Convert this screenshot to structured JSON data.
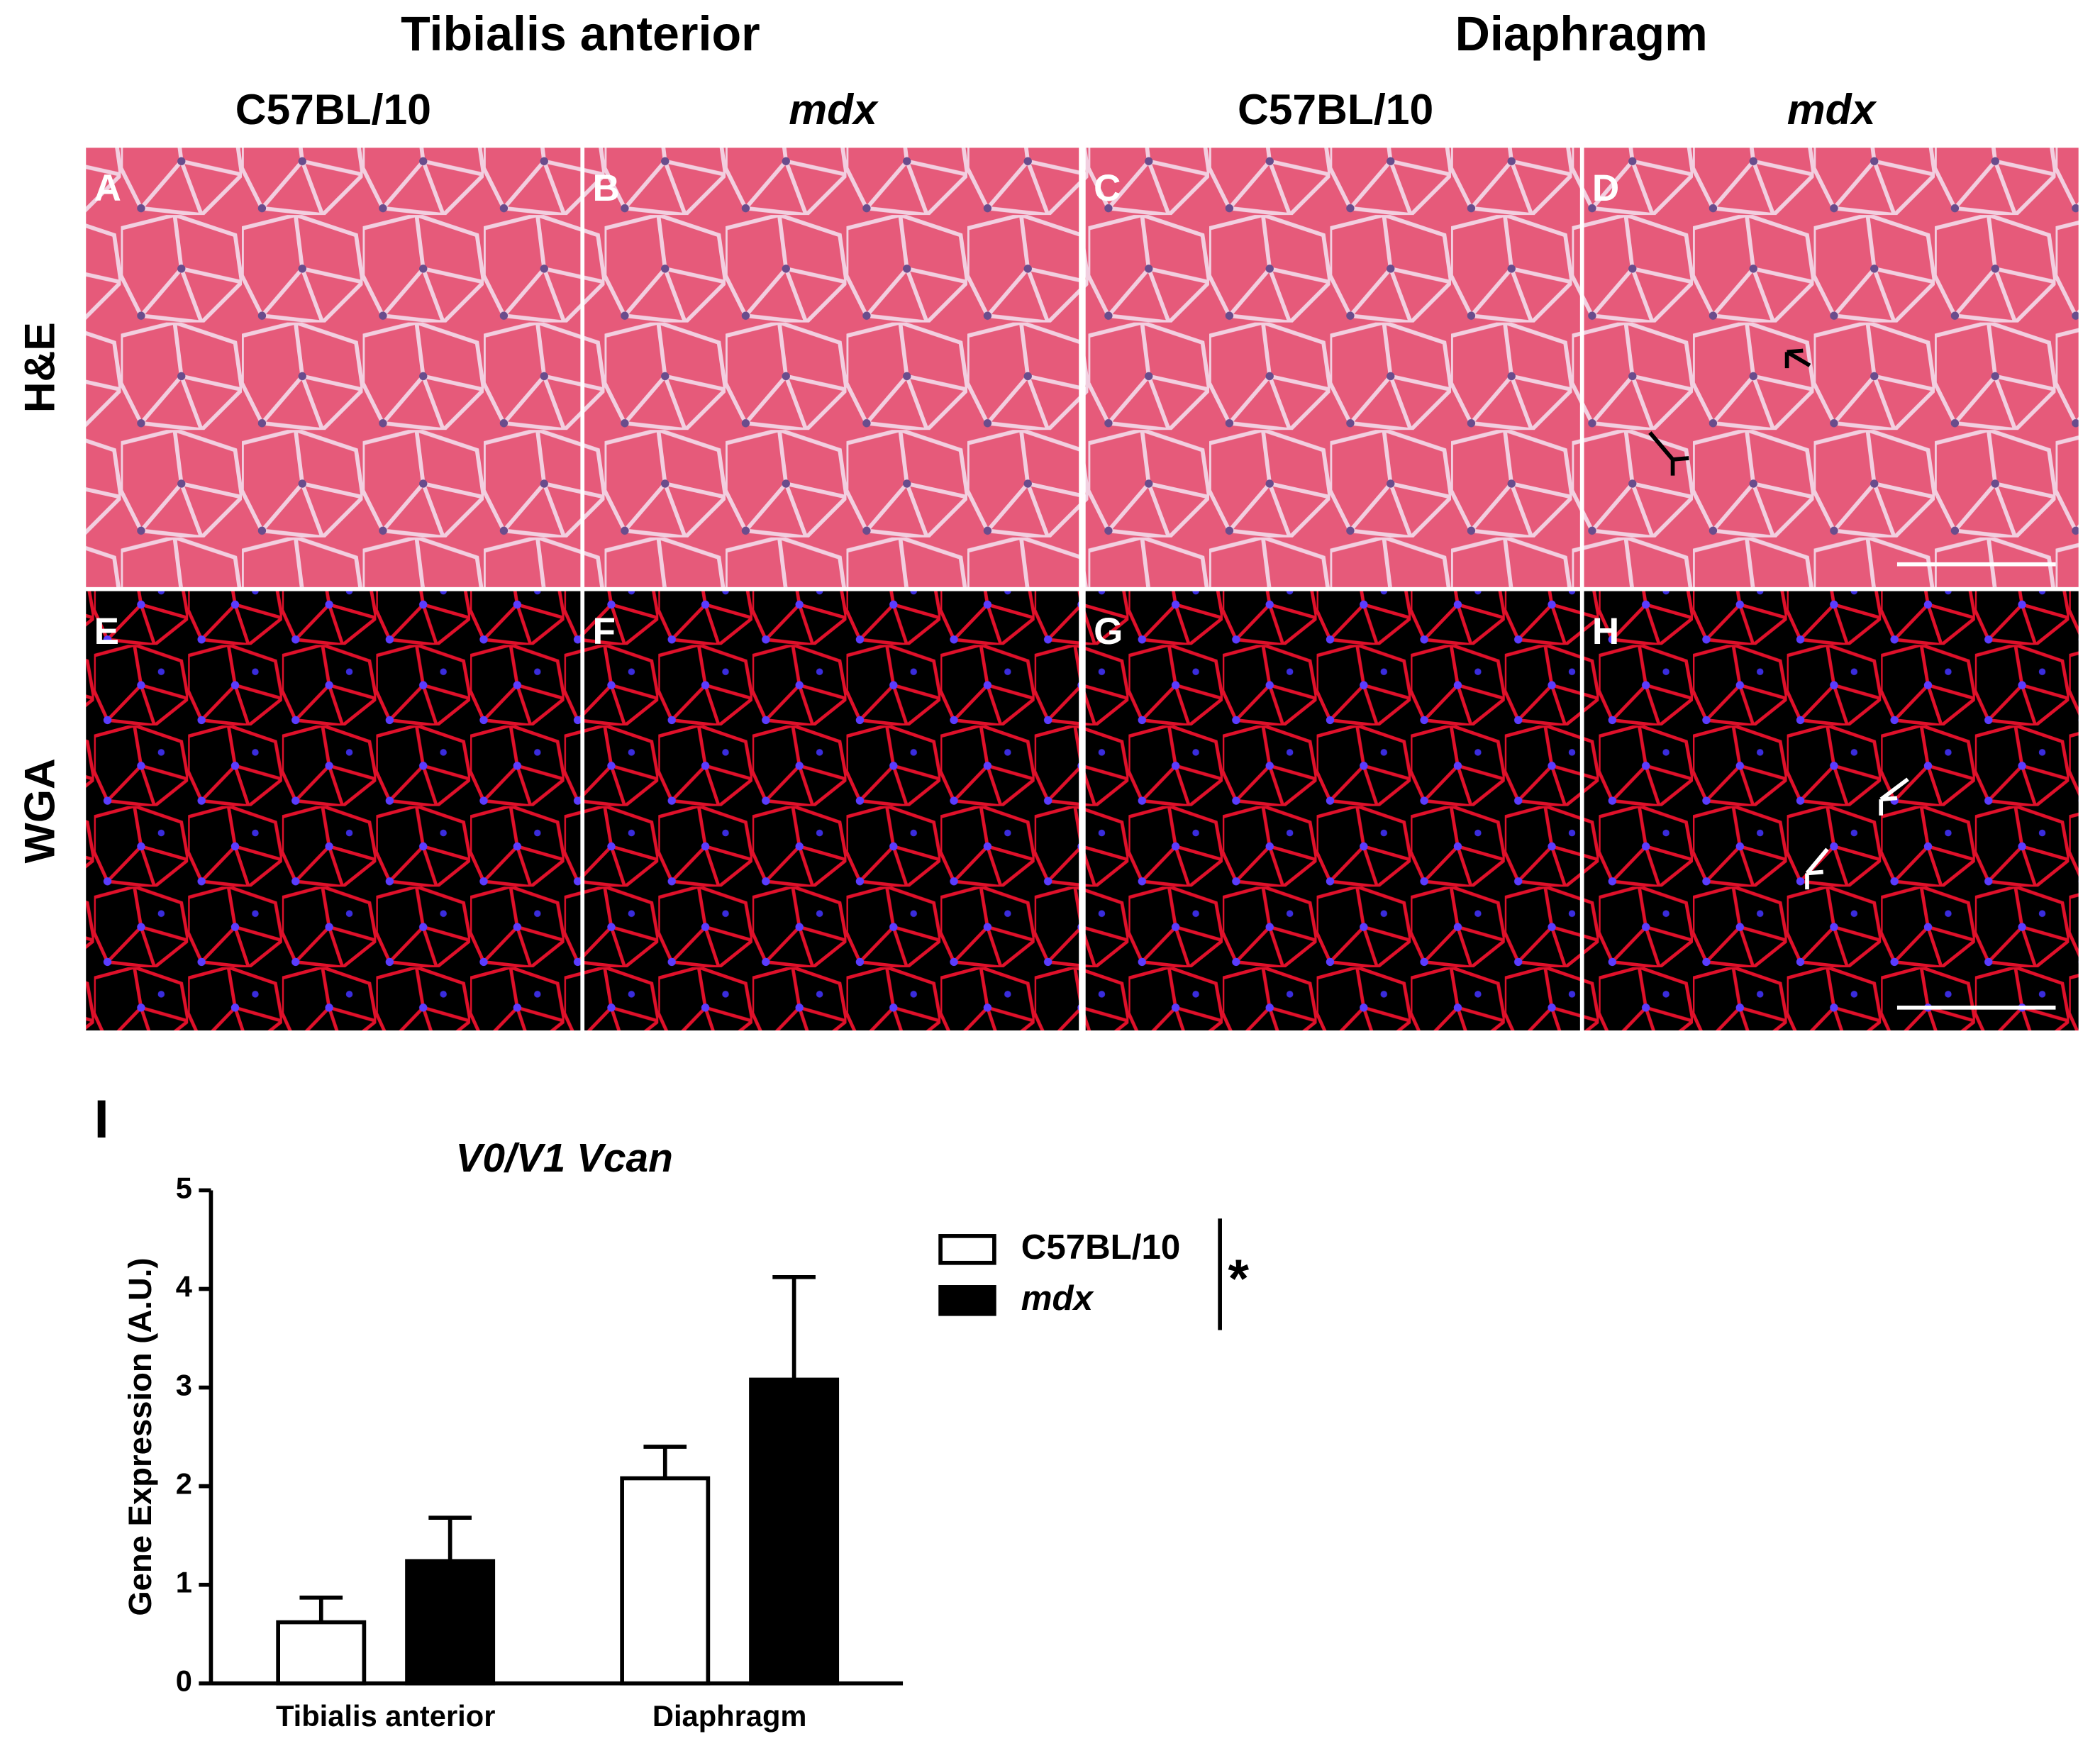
{
  "headers": {
    "groups": [
      "Tibialis anterior",
      "Diaphragm"
    ],
    "columns": [
      "C57BL/10",
      "mdx",
      "C57BL/10",
      "mdx"
    ],
    "rows": [
      "H&E",
      "WGA"
    ],
    "panels": [
      "A",
      "B",
      "C",
      "D",
      "E",
      "F",
      "G",
      "H"
    ]
  },
  "chart_data": {
    "type": "bar",
    "panel_label": "I",
    "title": "V0/V1 Vcan",
    "y_label": "Gene Expression (A.U.)",
    "categories": [
      "Tibialis anterior",
      "Diaphragm"
    ],
    "series": [
      {
        "name": "C57BL/10",
        "color": "#ffffff",
        "values": [
          0.62,
          2.08
        ],
        "errors": [
          0.25,
          0.32
        ]
      },
      {
        "name": "mdx",
        "color": "#000000",
        "values": [
          1.24,
          3.08
        ],
        "errors": [
          0.44,
          1.04
        ]
      }
    ],
    "ylim": [
      0,
      5
    ],
    "yticks": [
      0,
      1,
      2,
      3,
      4,
      5
    ],
    "significance": "*"
  }
}
